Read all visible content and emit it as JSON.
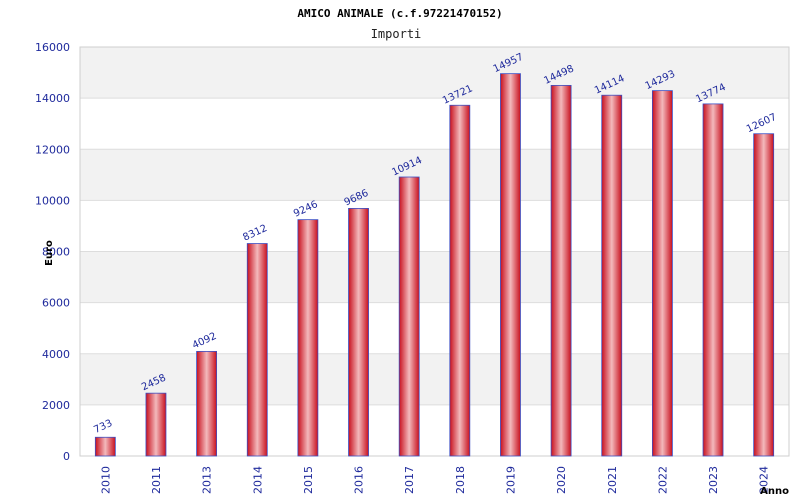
{
  "chart_data": {
    "type": "bar",
    "title": "AMICO ANIMALE (c.f.97221470152)",
    "subtitle": "Importi",
    "xlabel": "Anno",
    "ylabel": "Euro",
    "categories": [
      "2010",
      "2011",
      "2013",
      "2014",
      "2015",
      "2016",
      "2017",
      "2018",
      "2019",
      "2020",
      "2021",
      "2022",
      "2023",
      "2024"
    ],
    "values": [
      733,
      2458,
      4092,
      8312,
      9246,
      9686,
      10914,
      13721,
      14957,
      14498,
      14114,
      14293,
      13774,
      12607
    ],
    "ylim": [
      0,
      16000
    ],
    "yticks": [
      0,
      2000,
      4000,
      6000,
      8000,
      10000,
      12000,
      14000,
      16000
    ],
    "grid": true,
    "legend": "none",
    "colors": {
      "bar": "#e8202e",
      "bar_highlight": "#f3b9bc",
      "bar_outline": "#3b4fc4",
      "label": "#1f2a9c",
      "band": "#f2f2f2",
      "grid": "#dddddd"
    }
  }
}
